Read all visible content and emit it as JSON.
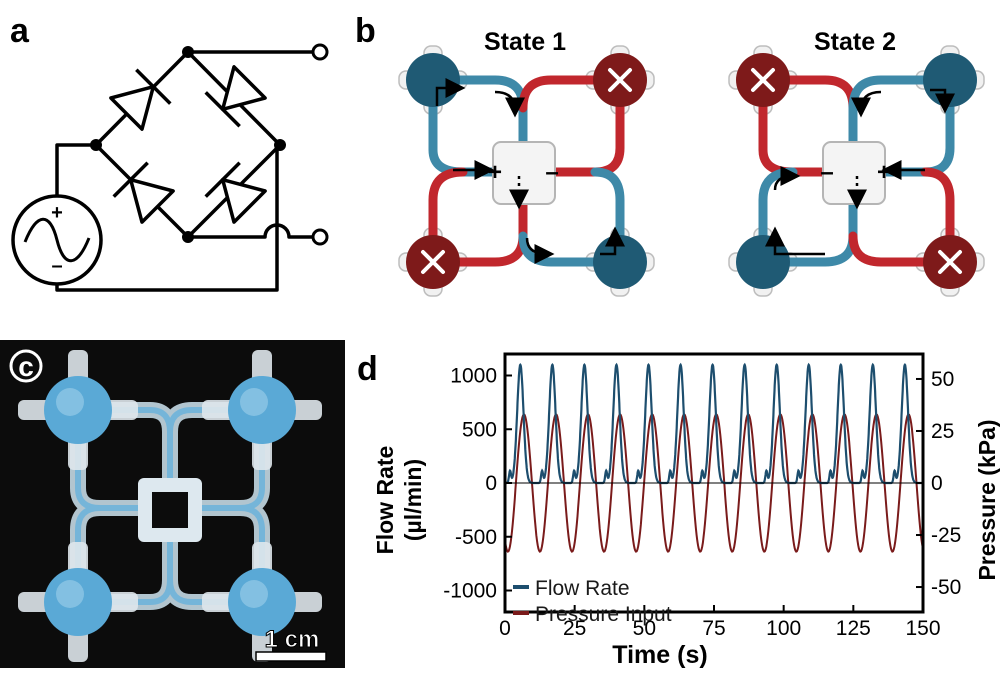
{
  "panels": {
    "a": {
      "label": "a",
      "polarity_plus": "+",
      "polarity_minus": "–"
    },
    "b": {
      "label": "b",
      "state1_title": "State 1",
      "state2_title": "State 2",
      "s1_plus": "+",
      "s1_minus": "–",
      "s2_plus": "+",
      "s2_minus": "–"
    },
    "c": {
      "label": "c",
      "scale_bar": "1 cm"
    },
    "d": {
      "label": "d"
    }
  },
  "colors": {
    "flow": "#1d4e6e",
    "pressure": "#7a1b1b",
    "valve_open": "#1f5a74",
    "valve_closed": "#7e1a1a",
    "channel_red": "#c1272d",
    "channel_blue": "#3e89a8",
    "photo_bg": "#0c0c0c",
    "photo_blue": "#5aa9d6"
  },
  "chart_data": {
    "type": "line",
    "xlabel": "Time (s)",
    "ylabel_left": "Flow Rate (µl/min)",
    "ylabel_left_lines": [
      "Flow Rate",
      "(µl/min)"
    ],
    "ylabel_right": "Pressure (kPa)",
    "xlim": [
      0,
      150
    ],
    "ylim_left": [
      -1200,
      1200
    ],
    "ylim_right": [
      -62,
      62
    ],
    "xticks": [
      0,
      25,
      50,
      75,
      100,
      125,
      150
    ],
    "yticks_left": [
      1000,
      500,
      0,
      -500,
      -1000
    ],
    "yticks_right": [
      50,
      25,
      0,
      -25,
      -50
    ],
    "legend": {
      "placement": "bottom-left",
      "entries": [
        "Flow Rate",
        "Pressure Input"
      ]
    },
    "grid": false,
    "series": [
      {
        "name": "Flow Rate",
        "axis": "left",
        "period": 11.5,
        "phase": 0,
        "peak_time_in_cycle": 5.5,
        "peak": 1100,
        "secondary_peak": 110,
        "secondary_time_in_cycle": 1.8
      },
      {
        "name": "Pressure Input",
        "axis": "right",
        "period": 11.5,
        "phase": 0,
        "amplitude": 33,
        "peak_time_in_cycle": 6.8
      }
    ]
  }
}
